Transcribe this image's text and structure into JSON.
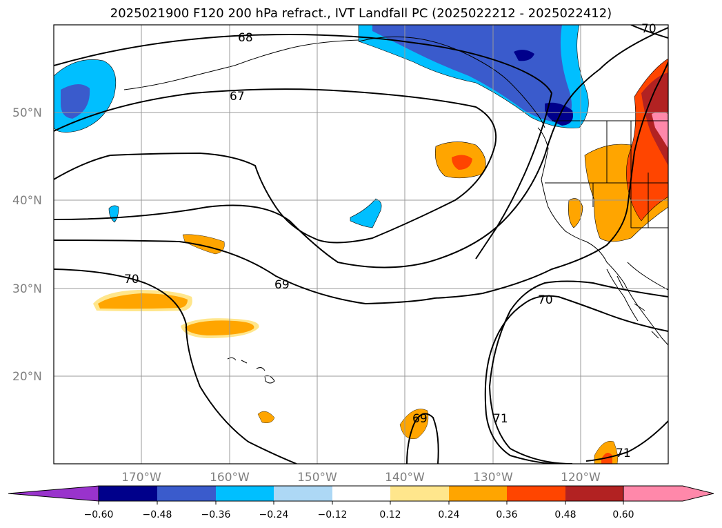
{
  "title": "2025021900 F120 200 hPa refract., IVT Landfall PC (2025022212 - 2025022412)",
  "lat_labels": [
    "50°N",
    "40°N",
    "30°N",
    "20°N"
  ],
  "lon_labels": [
    "170°W",
    "160°W",
    "150°W",
    "140°W",
    "130°W",
    "120°W"
  ],
  "contour_labels": [
    "68",
    "67",
    "70",
    "69",
    "70",
    "71",
    "69",
    "71",
    "70"
  ],
  "colorbar": {
    "ticks": [
      "−0.60",
      "−0.48",
      "−0.36",
      "−0.24",
      "−0.12",
      "0.12",
      "0.24",
      "0.36",
      "0.48",
      "0.60"
    ],
    "colors": [
      "#9933cc",
      "#00008b",
      "#3a5bcc",
      "#00bfff",
      "#add8f5",
      "#ffffff",
      "#ffe68c",
      "#ffa500",
      "#ff4500",
      "#b22222",
      "#ff88aa"
    ]
  },
  "colors": {
    "neg_strong": "#00008b",
    "neg_mid": "#3a5bcc",
    "neg_light": "#00bfff",
    "neg_faint": "#add8f5",
    "pos_faint": "#ffe68c",
    "pos_mid": "#ffa500",
    "pos_strong": "#ff4500",
    "pos_darker": "#b22222",
    "pos_max": "#ff88aa"
  }
}
